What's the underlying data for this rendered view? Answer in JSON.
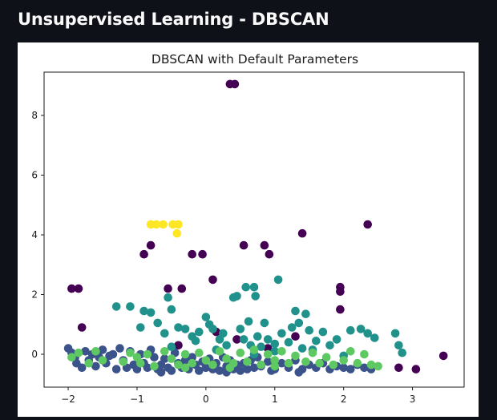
{
  "page": {
    "heading": "Unsupervised Learning - DBSCAN"
  },
  "chart_data": {
    "type": "scatter",
    "title": "DBSCAN with Default Parameters",
    "xlabel": "",
    "ylabel": "",
    "xlim": [
      -2.35,
      3.75
    ],
    "ylim": [
      -1.1,
      9.45
    ],
    "x_ticks": [
      -2,
      -1,
      0,
      1,
      2,
      3
    ],
    "y_ticks": [
      0,
      2,
      4,
      6,
      8
    ],
    "grid": false,
    "legend": "none",
    "colormap": "viridis",
    "clusters": [
      {
        "color": "#440154",
        "points": [
          [
            0.35,
            9.05
          ],
          [
            0.42,
            9.05
          ],
          [
            -1.95,
            2.2
          ],
          [
            -1.85,
            2.2
          ],
          [
            -1.8,
            0.9
          ],
          [
            -0.9,
            3.35
          ],
          [
            -0.8,
            3.65
          ],
          [
            -0.55,
            2.2
          ],
          [
            -0.35,
            2.2
          ],
          [
            -0.2,
            3.35
          ],
          [
            -0.05,
            3.35
          ],
          [
            0.1,
            2.5
          ],
          [
            0.55,
            3.65
          ],
          [
            0.85,
            3.65
          ],
          [
            0.92,
            3.35
          ],
          [
            1.4,
            4.05
          ],
          [
            2.35,
            4.35
          ],
          [
            1.95,
            2.25
          ],
          [
            1.95,
            2.1
          ],
          [
            1.95,
            1.5
          ],
          [
            0.15,
            0.75
          ],
          [
            1.3,
            0.6
          ],
          [
            2.8,
            -0.45
          ],
          [
            3.05,
            -0.5
          ],
          [
            3.45,
            -0.05
          ],
          [
            0.45,
            0.5
          ],
          [
            -0.4,
            0.3
          ],
          [
            0.9,
            0.2
          ]
        ]
      },
      {
        "color": "#3b528b",
        "points": [
          [
            -2.0,
            0.2
          ],
          [
            -1.95,
            0.05
          ],
          [
            -1.9,
            -0.1
          ],
          [
            -1.88,
            -0.3
          ],
          [
            -1.8,
            -0.45
          ],
          [
            -1.75,
            0.1
          ],
          [
            -1.7,
            -0.2
          ],
          [
            -1.65,
            0.0
          ],
          [
            -1.6,
            -0.4
          ],
          [
            -1.55,
            -0.1
          ],
          [
            -1.5,
            0.15
          ],
          [
            -1.45,
            -0.3
          ],
          [
            -1.4,
            -0.05
          ],
          [
            -1.35,
            0.0
          ],
          [
            -1.3,
            -0.5
          ],
          [
            -1.25,
            0.2
          ],
          [
            -1.2,
            -0.2
          ],
          [
            -1.1,
            0.1
          ],
          [
            -1.05,
            -0.35
          ],
          [
            -1.0,
            -0.5
          ],
          [
            -0.95,
            0.0
          ],
          [
            -0.9,
            -0.3
          ],
          [
            -0.85,
            -0.45
          ],
          [
            -0.8,
            0.15
          ],
          [
            -0.75,
            -0.1
          ],
          [
            -0.7,
            -0.5
          ],
          [
            -0.65,
            -0.35
          ],
          [
            -0.6,
            -0.15
          ],
          [
            -0.55,
            -0.45
          ],
          [
            -0.5,
            -0.55
          ],
          [
            -0.45,
            0.05
          ],
          [
            -0.4,
            -0.3
          ],
          [
            -0.35,
            -0.45
          ],
          [
            -0.3,
            -0.2
          ],
          [
            -0.25,
            -0.5
          ],
          [
            -0.2,
            -0.1
          ],
          [
            -0.15,
            -0.35
          ],
          [
            -0.1,
            -0.55
          ],
          [
            -0.05,
            -0.25
          ],
          [
            0.0,
            -0.45
          ],
          [
            0.05,
            -0.15
          ],
          [
            0.1,
            -0.5
          ],
          [
            0.15,
            -0.3
          ],
          [
            0.2,
            -0.55
          ],
          [
            0.25,
            -0.1
          ],
          [
            0.3,
            -0.4
          ],
          [
            0.35,
            -0.2
          ],
          [
            0.4,
            -0.5
          ],
          [
            0.45,
            -0.35
          ],
          [
            0.5,
            -0.55
          ],
          [
            0.55,
            -0.3
          ],
          [
            0.6,
            -0.5
          ],
          [
            0.65,
            -0.2
          ],
          [
            0.7,
            -0.45
          ],
          [
            0.75,
            -0.1
          ],
          [
            0.8,
            -0.4
          ],
          [
            0.9,
            -0.25
          ],
          [
            1.0,
            -0.5
          ],
          [
            1.1,
            -0.3
          ],
          [
            1.2,
            -0.45
          ],
          [
            1.3,
            -0.2
          ],
          [
            1.4,
            -0.5
          ],
          [
            1.5,
            -0.35
          ],
          [
            1.6,
            -0.45
          ],
          [
            1.7,
            -0.3
          ],
          [
            1.8,
            -0.5
          ],
          [
            1.9,
            -0.4
          ],
          [
            2.0,
            -0.45
          ],
          [
            2.1,
            -0.5
          ],
          [
            2.2,
            -0.35
          ],
          [
            2.3,
            -0.45
          ],
          [
            2.4,
            -0.5
          ],
          [
            -1.15,
            -0.45
          ],
          [
            -0.65,
            -0.6
          ],
          [
            0.3,
            -0.6
          ],
          [
            0.95,
            -0.55
          ],
          [
            1.35,
            -0.6
          ]
        ]
      },
      {
        "color": "#21918c",
        "points": [
          [
            -1.3,
            1.6
          ],
          [
            -1.1,
            1.6
          ],
          [
            -0.9,
            1.45
          ],
          [
            -0.8,
            1.4
          ],
          [
            -0.7,
            1.05
          ],
          [
            -0.55,
            1.9
          ],
          [
            -0.5,
            1.5
          ],
          [
            -0.4,
            0.9
          ],
          [
            -0.3,
            0.85
          ],
          [
            -0.2,
            0.6
          ],
          [
            -0.1,
            0.75
          ],
          [
            0.0,
            1.25
          ],
          [
            0.05,
            1.0
          ],
          [
            0.1,
            0.85
          ],
          [
            0.2,
            0.5
          ],
          [
            0.3,
            0.3
          ],
          [
            0.4,
            1.9
          ],
          [
            0.45,
            1.95
          ],
          [
            0.5,
            0.85
          ],
          [
            0.55,
            0.5
          ],
          [
            0.58,
            2.25
          ],
          [
            0.62,
            1.1
          ],
          [
            0.65,
            0.3
          ],
          [
            0.7,
            2.25
          ],
          [
            0.72,
            1.95
          ],
          [
            0.75,
            0.6
          ],
          [
            0.8,
            0.25
          ],
          [
            0.85,
            1.05
          ],
          [
            0.9,
            0.5
          ],
          [
            1.0,
            0.1
          ],
          [
            1.05,
            2.5
          ],
          [
            1.1,
            0.7
          ],
          [
            1.2,
            0.4
          ],
          [
            1.3,
            1.45
          ],
          [
            1.35,
            1.05
          ],
          [
            1.4,
            0.2
          ],
          [
            1.45,
            1.35
          ],
          [
            1.5,
            0.8
          ],
          [
            1.6,
            0.45
          ],
          [
            1.7,
            0.75
          ],
          [
            1.8,
            0.3
          ],
          [
            1.9,
            0.5
          ],
          [
            2.0,
            -0.05
          ],
          [
            2.1,
            0.8
          ],
          [
            2.25,
            0.85
          ],
          [
            2.35,
            0.7
          ],
          [
            2.45,
            0.55
          ],
          [
            2.75,
            0.7
          ],
          [
            2.8,
            0.3
          ],
          [
            2.85,
            0.05
          ],
          [
            -0.95,
            0.9
          ],
          [
            -0.6,
            0.7
          ],
          [
            -0.15,
            0.45
          ],
          [
            0.25,
            0.7
          ],
          [
            0.7,
            0.0
          ],
          [
            1.0,
            0.35
          ],
          [
            1.25,
            0.9
          ],
          [
            1.55,
            0.15
          ],
          [
            -0.5,
            0.25
          ],
          [
            0.15,
            0.15
          ]
        ]
      },
      {
        "color": "#5ec962",
        "points": [
          [
            -1.95,
            -0.1
          ],
          [
            -1.85,
            0.05
          ],
          [
            -1.7,
            -0.3
          ],
          [
            -1.6,
            0.1
          ],
          [
            -1.5,
            -0.2
          ],
          [
            -1.2,
            -0.25
          ],
          [
            -1.1,
            0.05
          ],
          [
            -0.95,
            -0.3
          ],
          [
            -0.85,
            0.0
          ],
          [
            -0.75,
            -0.4
          ],
          [
            -0.6,
            0.1
          ],
          [
            -0.5,
            -0.15
          ],
          [
            -0.4,
            -0.35
          ],
          [
            -0.3,
            0.0
          ],
          [
            -0.2,
            -0.3
          ],
          [
            -0.1,
            0.05
          ],
          [
            0.0,
            -0.2
          ],
          [
            0.1,
            -0.35
          ],
          [
            0.2,
            0.1
          ],
          [
            0.3,
            -0.15
          ],
          [
            0.4,
            -0.3
          ],
          [
            0.5,
            0.05
          ],
          [
            0.6,
            -0.25
          ],
          [
            0.7,
            0.15
          ],
          [
            0.8,
            -0.35
          ],
          [
            0.9,
            0.0
          ],
          [
            1.0,
            -0.2
          ],
          [
            1.1,
            0.1
          ],
          [
            1.2,
            -0.3
          ],
          [
            1.3,
            -0.05
          ],
          [
            1.45,
            -0.25
          ],
          [
            1.55,
            0.05
          ],
          [
            1.65,
            -0.3
          ],
          [
            1.75,
            -0.1
          ],
          [
            1.85,
            -0.35
          ],
          [
            2.0,
            -0.2
          ],
          [
            2.1,
            0.1
          ],
          [
            2.2,
            -0.3
          ],
          [
            2.3,
            0.0
          ],
          [
            2.4,
            -0.35
          ],
          [
            2.5,
            -0.4
          ],
          [
            -1.0,
            -0.1
          ],
          [
            -0.3,
            -0.45
          ],
          [
            0.35,
            -0.45
          ],
          [
            1.0,
            -0.4
          ]
        ]
      },
      {
        "color": "#fde725",
        "points": [
          [
            -0.8,
            4.35
          ],
          [
            -0.72,
            4.35
          ],
          [
            -0.62,
            4.35
          ],
          [
            -0.48,
            4.35
          ],
          [
            -0.4,
            4.35
          ],
          [
            -0.42,
            4.05
          ]
        ]
      }
    ]
  }
}
